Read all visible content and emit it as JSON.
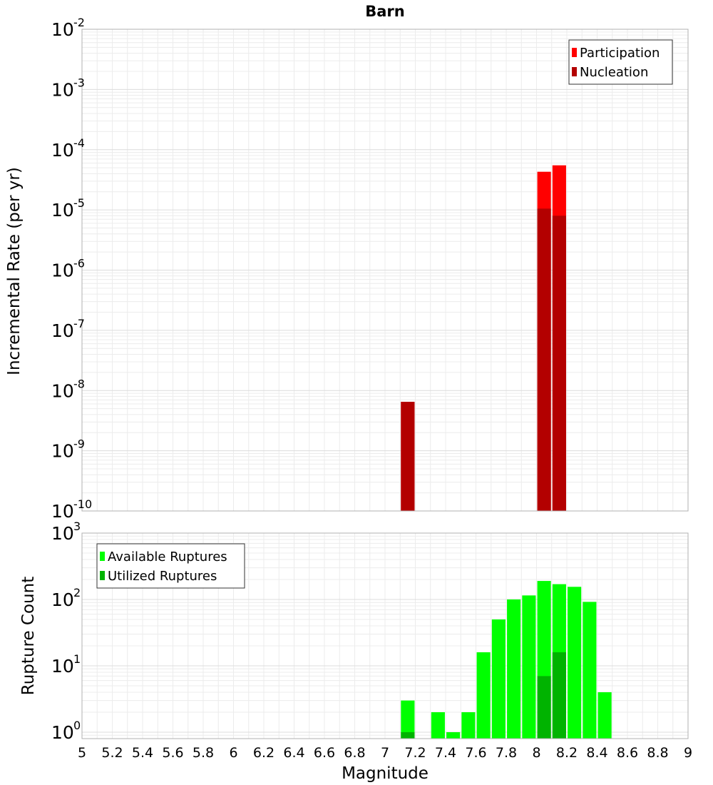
{
  "chart_data": [
    {
      "type": "bar",
      "title": "Barn",
      "ylabel": "Incremental Rate (per yr)",
      "xlabel": "",
      "yscale": "log",
      "ylim": [
        1e-10,
        0.01
      ],
      "xlim": [
        5,
        9
      ],
      "y_tick_exponents": [
        "-10",
        "-9",
        "-8",
        "-7",
        "-6",
        "-5",
        "-4",
        "-3",
        "-2"
      ],
      "legend_position": "top-right",
      "grid": true,
      "bar_width": 0.09,
      "series": [
        {
          "name": "Participation",
          "color": "#ff0000",
          "x": [
            7.15,
            8.05,
            8.15
          ],
          "values": [
            6.5e-09,
            4.3e-05,
            5.5e-05
          ]
        },
        {
          "name": "Nucleation",
          "color": "#b30000",
          "x": [
            7.15,
            8.05,
            8.15
          ],
          "values": [
            6.5e-09,
            1.05e-05,
            8e-06
          ]
        }
      ]
    },
    {
      "type": "bar",
      "title": "",
      "ylabel": "Rupture Count",
      "xlabel": "Magnitude",
      "yscale": "log",
      "ylim": [
        0.8,
        1000
      ],
      "xlim": [
        5,
        9
      ],
      "x_ticks": [
        "5",
        "5.2",
        "5.4",
        "5.6",
        "5.8",
        "6",
        "6.2",
        "6.4",
        "6.6",
        "6.8",
        "7",
        "7.2",
        "7.4",
        "7.6",
        "7.8",
        "8",
        "8.2",
        "8.4",
        "8.6",
        "8.8",
        "9"
      ],
      "y_tick_exponents": [
        "0",
        "1",
        "2",
        "3"
      ],
      "legend_position": "top-left",
      "grid": true,
      "bar_width": 0.09,
      "series": [
        {
          "name": "Available Ruptures",
          "color": "#00ff00",
          "x": [
            7.15,
            7.35,
            7.45,
            7.55,
            7.65,
            7.75,
            7.85,
            7.95,
            8.05,
            8.15,
            8.25,
            8.35,
            8.45
          ],
          "values": [
            3,
            2,
            1,
            2,
            16,
            50,
            100,
            115,
            190,
            170,
            155,
            92,
            4
          ]
        },
        {
          "name": "Utilized Ruptures",
          "color": "#00b300",
          "x": [
            7.15,
            8.05,
            8.15
          ],
          "values": [
            1,
            7,
            16
          ]
        }
      ]
    }
  ]
}
